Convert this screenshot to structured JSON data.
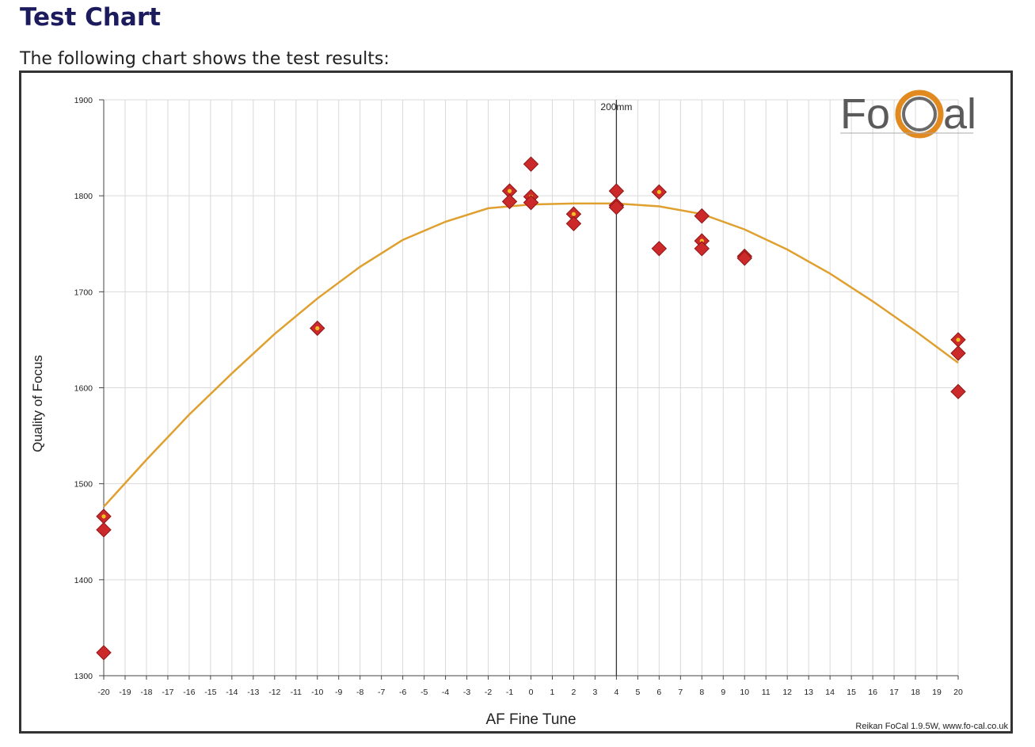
{
  "page": {
    "title": "Test Chart",
    "intro": "The following chart shows the test results:"
  },
  "chart_data": {
    "type": "scatter",
    "title": "",
    "xlabel": "AF Fine Tune",
    "ylabel": "Quality of Focus",
    "xlim": [
      -20,
      20
    ],
    "ylim": [
      1300,
      1900
    ],
    "x_ticks": [
      -20,
      -19,
      -18,
      -17,
      -16,
      -15,
      -14,
      -13,
      -12,
      -11,
      -10,
      -9,
      -8,
      -7,
      -6,
      -5,
      -4,
      -3,
      -2,
      -1,
      0,
      1,
      2,
      3,
      4,
      5,
      6,
      7,
      8,
      9,
      10,
      11,
      12,
      13,
      14,
      15,
      16,
      17,
      18,
      19,
      20
    ],
    "y_ticks": [
      1300,
      1400,
      1500,
      1600,
      1700,
      1800,
      1900
    ],
    "grid": true,
    "marker_line": {
      "x": 4,
      "label": "200mm"
    },
    "points": [
      {
        "x": -20,
        "y": 1466,
        "mean": true
      },
      {
        "x": -20,
        "y": 1452,
        "mean": false
      },
      {
        "x": -20,
        "y": 1324,
        "mean": false
      },
      {
        "x": -10,
        "y": 1662,
        "mean": true
      },
      {
        "x": -1,
        "y": 1805,
        "mean": true
      },
      {
        "x": -1,
        "y": 1794,
        "mean": false
      },
      {
        "x": 0,
        "y": 1833,
        "mean": false
      },
      {
        "x": 0,
        "y": 1799,
        "mean": true
      },
      {
        "x": 0,
        "y": 1793,
        "mean": false
      },
      {
        "x": 2,
        "y": 1781,
        "mean": true
      },
      {
        "x": 2,
        "y": 1771,
        "mean": false
      },
      {
        "x": 4,
        "y": 1805,
        "mean": false
      },
      {
        "x": 4,
        "y": 1790,
        "mean": true
      },
      {
        "x": 4,
        "y": 1788,
        "mean": false
      },
      {
        "x": 6,
        "y": 1804,
        "mean": true
      },
      {
        "x": 6,
        "y": 1745,
        "mean": false
      },
      {
        "x": 8,
        "y": 1779,
        "mean": false
      },
      {
        "x": 8,
        "y": 1753,
        "mean": true
      },
      {
        "x": 8,
        "y": 1745,
        "mean": false
      },
      {
        "x": 10,
        "y": 1737,
        "mean": true
      },
      {
        "x": 10,
        "y": 1735,
        "mean": false
      },
      {
        "x": 20,
        "y": 1650,
        "mean": true
      },
      {
        "x": 20,
        "y": 1636,
        "mean": false
      },
      {
        "x": 20,
        "y": 1596,
        "mean": false
      }
    ],
    "fit_curve": {
      "x": [
        -20,
        -18,
        -16,
        -14,
        -12,
        -10,
        -8,
        -6,
        -4,
        -2,
        0,
        2,
        4,
        6,
        8,
        10,
        12,
        14,
        16,
        18,
        20
      ],
      "y": [
        1476,
        1525,
        1572,
        1615,
        1656,
        1693,
        1726,
        1754,
        1773,
        1787,
        1791,
        1792,
        1792,
        1789,
        1781,
        1765,
        1744,
        1719,
        1690,
        1659,
        1626
      ]
    },
    "colors": {
      "point_fill": "#cc2a2a",
      "point_stroke": "#8e1414",
      "mean_dot": "#f0c020",
      "fit_line": "#e0a030",
      "marker_line": "#333333",
      "grid": "#d9d9d9",
      "axis": "#444444"
    }
  },
  "logo": {
    "text_left": "Fo",
    "text_right": "al",
    "ring_color": "#e08a20"
  },
  "footer": {
    "credit": "Reikan FoCal 1.9.5W, www.fo-cal.co.uk"
  }
}
